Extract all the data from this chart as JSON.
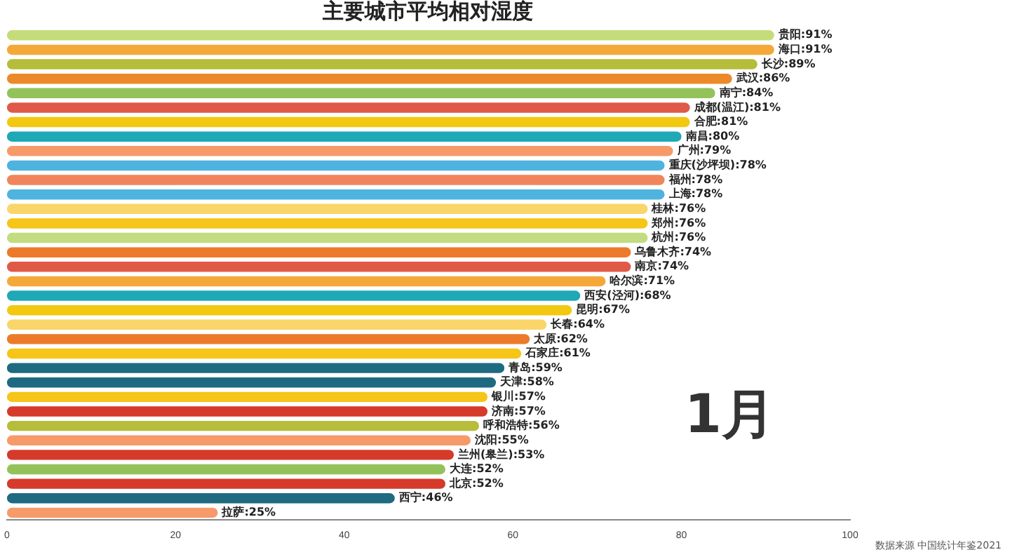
{
  "chart_data": {
    "type": "bar",
    "orientation": "horizontal",
    "title": "主要城市平均相对湿度",
    "categories": [
      null,
      null,
      null,
      null,
      null,
      null,
      null,
      null,
      null,
      null,
      null,
      null,
      null,
      null,
      null,
      null,
      null,
      null,
      null,
      null,
      null,
      null,
      null,
      null,
      null,
      null,
      null,
      null,
      null,
      null,
      null,
      null,
      null,
      null
    ],
    "values": [
      91,
      91,
      89,
      86,
      84,
      81,
      81,
      80,
      79,
      78,
      78,
      78,
      76,
      76,
      76,
      74,
      74,
      71,
      68,
      67,
      64,
      62,
      61,
      59,
      58,
      57,
      57,
      56,
      55,
      53,
      52,
      52,
      46,
      25
    ],
    "colors": [
      "#c5dc7a",
      "#f5a83a",
      "#b5bd3a",
      "#ec8a2a",
      "#94c25a",
      "#e05a48",
      "#f2c811",
      "#1fa8b6",
      "#f79a6a",
      "#4fb3e0",
      "#f2845c",
      "#4fb3e0",
      "#f9d56a",
      "#f5c518",
      "#c2dc80",
      "#ec7a2a",
      "#e05a48",
      "#f5a83a",
      "#1fa8b6",
      "#f2c811",
      "#f9d56a",
      "#ec7a2a",
      "#f5c518",
      "#1e6a80",
      "#1e6a80",
      "#f5c518",
      "#d63a2a",
      "#b5bd3a",
      "#f79a6a",
      "#d63a2a",
      "#94c25a",
      "#d63a2a",
      "#1e6a80",
      "#f79a6a"
    ],
    "value_labels": [
      "贵阳:91%",
      "海口:91%",
      "长沙:89%",
      "武汉:86%",
      "南宁:84%",
      "成都(温江):81%",
      "合肥:81%",
      "南昌:80%",
      "广州:79%",
      "重庆(沙坪坝):78%",
      "福州:78%",
      "上海:78%",
      "桂林:76%",
      "郑州:76%",
      "杭州:76%",
      "乌鲁木齐:74%",
      "南京:74%",
      "哈尔滨:71%",
      "西安(泾河):68%",
      "昆明:67%",
      "长春:64%",
      "太原:62%",
      "石家庄:61%",
      "青岛:59%",
      "天津:58%",
      "银川:57%",
      "济南:57%",
      "呼和浩特:56%",
      "沈阳:55%",
      "兰州(皋兰):53%",
      "大连:52%",
      "北京:52%",
      "西宁:46%",
      "拉萨:25%"
    ],
    "xlim": [
      0,
      100
    ],
    "xticks": [
      0,
      20,
      40,
      60,
      80,
      100
    ],
    "tick_labels": "x",
    "grid": false,
    "legend": false,
    "annotations": [
      "1月",
      "数据来源 中国统计年鉴2021"
    ]
  }
}
